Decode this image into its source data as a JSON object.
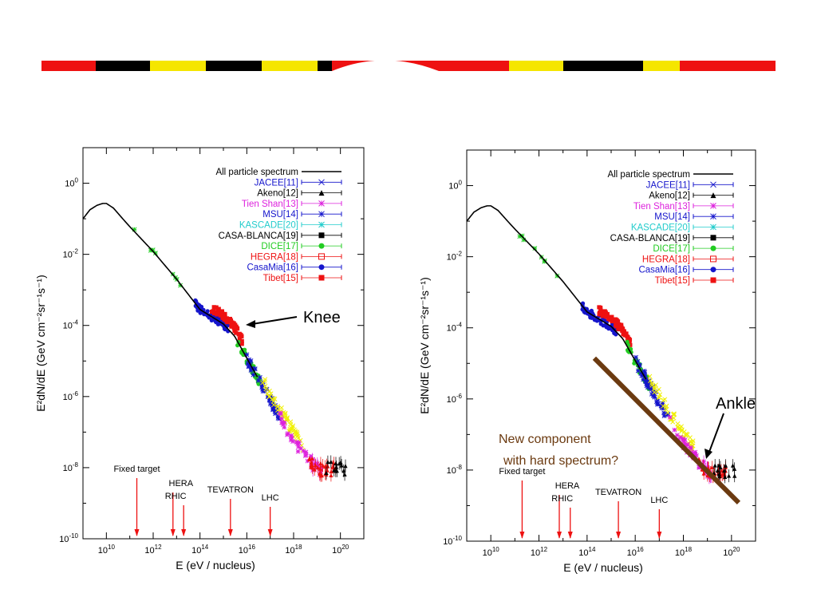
{
  "colors": {
    "band": [
      "#ee1111",
      "#000000",
      "#f5e600"
    ],
    "red": "#ee1111",
    "blue": "#1515cc",
    "magenta": "#dd22dd",
    "cyan": "#22cccc",
    "green": "#22cc22",
    "black": "#000000",
    "brown": "#6b3a10",
    "yellow": "#f0f000"
  },
  "chart_data": [
    {
      "type": "scatter",
      "title": "",
      "xlabel": "E      (eV / nucleus)",
      "ylabel": "E²dN/dE    (GeV cm⁻²sr⁻¹s⁻¹)",
      "xscale": "log",
      "yscale": "log",
      "xlim": [
        1000000000.0,
        1e+21
      ],
      "ylim": [
        1e-10,
        10
      ],
      "x_ticks": [
        "10^10",
        "10^12",
        "10^14",
        "10^16",
        "10^18",
        "10^20"
      ],
      "y_ticks": [
        "10^0",
        "10^-2",
        "10^-4",
        "10^-6",
        "10^-8",
        "10^-10"
      ],
      "legend_position": "top-right",
      "legend": [
        {
          "name": "All particle spectrum",
          "color": "#000000",
          "marker": "line"
        },
        {
          "name": "JACEE[11]",
          "color": "#1515cc",
          "marker": "x"
        },
        {
          "name": "Akeno[12]",
          "color": "#000000",
          "marker": "triangle"
        },
        {
          "name": "Tien Shan[13]",
          "color": "#dd22dd",
          "marker": "star"
        },
        {
          "name": "MSU[14]",
          "color": "#1515cc",
          "marker": "star"
        },
        {
          "name": "KASCADE[20]",
          "color": "#22cccc",
          "marker": "star"
        },
        {
          "name": "CASA-BLANCA[19]",
          "color": "#000000",
          "marker": "square"
        },
        {
          "name": "DICE[17]",
          "color": "#22cc22",
          "marker": "circle"
        },
        {
          "name": "HEGRA[18]",
          "color": "#ee1111",
          "marker": "open-square"
        },
        {
          "name": "CasaMia[16]",
          "color": "#1515cc",
          "marker": "circle"
        },
        {
          "name": "Tibet[15]",
          "color": "#ee1111",
          "marker": "square"
        }
      ],
      "all_particle_curve": {
        "x": [
          1000000000.0,
          2000000000.0,
          4000000000.0,
          7000000000.0,
          10000000000.0,
          20000000000.0,
          50000000000.0,
          100000000000.0,
          1000000000000.0,
          10000000000000.0,
          100000000000000.0,
          1000000000000000.0,
          3000000000000000.0,
          1e+16,
          1e+17,
          1e+18,
          1e+19
        ],
        "y": [
          0.1,
          0.18,
          0.24,
          0.27,
          0.27,
          0.2,
          0.1,
          0.06,
          0.012,
          0.002,
          0.00028,
          0.00011,
          5e-05,
          1.2e-05,
          8e-07,
          6e-08,
          9e-09
        ]
      },
      "accelerators": [
        {
          "label": "Fixed target",
          "x": 200000000000.0
        },
        {
          "label": "HERA",
          "x": 7000000000000.0
        },
        {
          "label": "RHIC",
          "x": 20000000000000.0
        },
        {
          "label": "TEVATRON",
          "x": 2000000000000000.0
        },
        {
          "label": "LHC",
          "x": 1e+17
        }
      ],
      "annotations": [
        {
          "text": "Knee",
          "x": 3000000000000000.0,
          "y": 0.00011
        }
      ]
    },
    {
      "type": "scatter",
      "title": "",
      "xlabel": "E      (eV / nucleus)",
      "ylabel": "E²dN/dE    (GeV cm⁻²sr⁻¹s⁻¹)",
      "xscale": "log",
      "yscale": "log",
      "xlim": [
        1000000000.0,
        1e+21
      ],
      "ylim": [
        1e-10,
        10
      ],
      "x_ticks": [
        "10^10",
        "10^12",
        "10^14",
        "10^16",
        "10^18",
        "10^20"
      ],
      "y_ticks": [
        "10^0",
        "10^-2",
        "10^-4",
        "10^-6",
        "10^-8",
        "10^-10"
      ],
      "legend_position": "top-right",
      "legend": [
        {
          "name": "All particle spectrum",
          "color": "#000000",
          "marker": "line"
        },
        {
          "name": "JACEE[11]",
          "color": "#1515cc",
          "marker": "x"
        },
        {
          "name": "Akeno[12]",
          "color": "#000000",
          "marker": "triangle"
        },
        {
          "name": "Tien Shan[13]",
          "color": "#dd22dd",
          "marker": "star"
        },
        {
          "name": "MSU[14]",
          "color": "#1515cc",
          "marker": "star"
        },
        {
          "name": "KASCADE[20]",
          "color": "#22cccc",
          "marker": "star"
        },
        {
          "name": "CASA-BLANCA[19]",
          "color": "#000000",
          "marker": "square"
        },
        {
          "name": "DICE[17]",
          "color": "#22cc22",
          "marker": "circle"
        },
        {
          "name": "HEGRA[18]",
          "color": "#ee1111",
          "marker": "open-square"
        },
        {
          "name": "CasaMia[16]",
          "color": "#1515cc",
          "marker": "circle"
        },
        {
          "name": "Tibet[15]",
          "color": "#ee1111",
          "marker": "square"
        }
      ],
      "all_particle_curve": {
        "x": [
          1000000000.0,
          2000000000.0,
          4000000000.0,
          7000000000.0,
          10000000000.0,
          20000000000.0,
          50000000000.0,
          100000000000.0,
          1000000000000.0,
          10000000000000.0,
          100000000000000.0,
          1000000000000000.0,
          3000000000000000.0,
          1e+16,
          1e+17,
          1e+18,
          1e+19
        ],
        "y": [
          0.1,
          0.18,
          0.24,
          0.27,
          0.27,
          0.2,
          0.1,
          0.06,
          0.012,
          0.002,
          0.00028,
          0.00011,
          5e-05,
          1.2e-05,
          8e-07,
          6e-08,
          9e-09
        ]
      },
      "hard_component_line": {
        "x": [
          200000000000000.0,
          2e+20
        ],
        "y": [
          1.4e-05,
          1.2e-09
        ]
      },
      "accelerators": [
        {
          "label": "Fixed target",
          "x": 200000000000.0
        },
        {
          "label": "HERA",
          "x": 7000000000000.0
        },
        {
          "label": "RHIC",
          "x": 20000000000000.0
        },
        {
          "label": "TEVATRON",
          "x": 2000000000000000.0
        },
        {
          "label": "LHC",
          "x": 1e+17
        }
      ],
      "annotations": [
        {
          "text": "Ankle",
          "x": 3e+19,
          "y": 1e-08
        },
        {
          "text": "New component",
          "x": 10000000000000.0,
          "y": 5e-08
        },
        {
          "text": "with hard spectrum?",
          "x": 10000000000000.0,
          "y": 2e-08
        }
      ]
    }
  ]
}
